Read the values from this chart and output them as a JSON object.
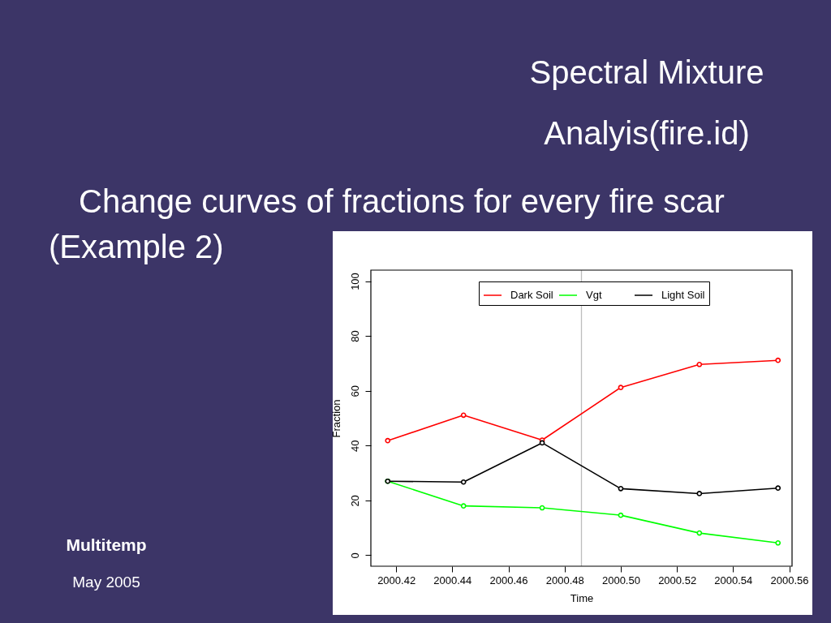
{
  "chart_data": {
    "type": "line",
    "title": "Spectral Mixture Analyis(fire.id)",
    "subtitle": "Change curves of fractions for every fire scar",
    "xlabel": "Time",
    "ylabel": "Fraction",
    "annotations": [
      "(Example 2)",
      "Multitemp",
      "May 2005"
    ],
    "x": [
      2000.417,
      2000.444,
      2000.472,
      2000.5,
      2000.528,
      2000.556
    ],
    "series": [
      {
        "name": "Dark Soil",
        "color": "#ff0000",
        "values": [
          41.8,
          51.1,
          42.0,
          61.2,
          69.6,
          71.1
        ]
      },
      {
        "name": "Vgt",
        "color": "#00ff00",
        "values": [
          27.0,
          18.0,
          17.3,
          14.6,
          8.1,
          4.5
        ]
      },
      {
        "name": "Light Soil",
        "color": "#000000",
        "values": [
          27.0,
          26.7,
          41.0,
          24.3,
          22.5,
          24.5
        ]
      }
    ],
    "xlim": [
      2000.411,
      2000.561
    ],
    "ylim": [
      -4,
      104
    ],
    "xticks": [
      2000.42,
      2000.44,
      2000.46,
      2000.48,
      {
        "value": 2000.5,
        "label": "2000.50"
      },
      2000.52,
      2000.54,
      2000.56
    ],
    "yticks": [
      0,
      20,
      40,
      60,
      80,
      100
    ],
    "ref_lines": [
      {
        "axis": "x",
        "value": 2000.486,
        "color": "#bebebe"
      }
    ],
    "legend": "top",
    "marker": "circle",
    "line_style": "solid"
  }
}
